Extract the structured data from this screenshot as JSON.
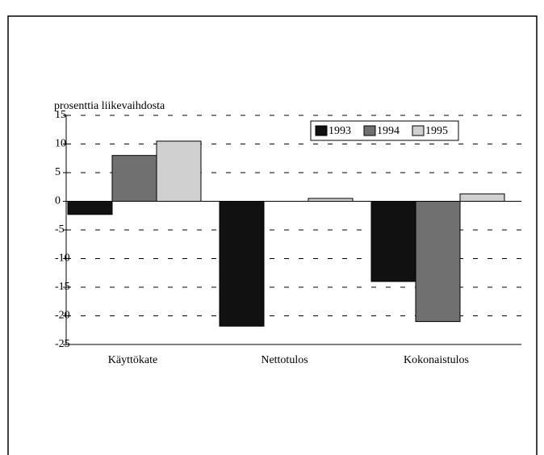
{
  "chart_data": {
    "type": "bar",
    "ylabel": "prosenttia liikevaihdosta",
    "categories": [
      "Käyttökate",
      "Nettotulos",
      "Kokonaistulos"
    ],
    "series": [
      {
        "name": "1993",
        "color": "#111111",
        "values": [
          -2.3,
          -21.8,
          -14
        ]
      },
      {
        "name": "1994",
        "color": "#707070",
        "values": [
          8,
          null,
          -21
        ]
      },
      {
        "name": "1995",
        "color": "#d0d0d0",
        "values": [
          10.5,
          0.5,
          1.3
        ]
      }
    ],
    "ylim": [
      -25,
      15
    ],
    "yticks": [
      -25,
      -20,
      -15,
      -10,
      -5,
      0,
      5,
      10,
      15
    ],
    "grid": true,
    "legend": "top-right"
  }
}
